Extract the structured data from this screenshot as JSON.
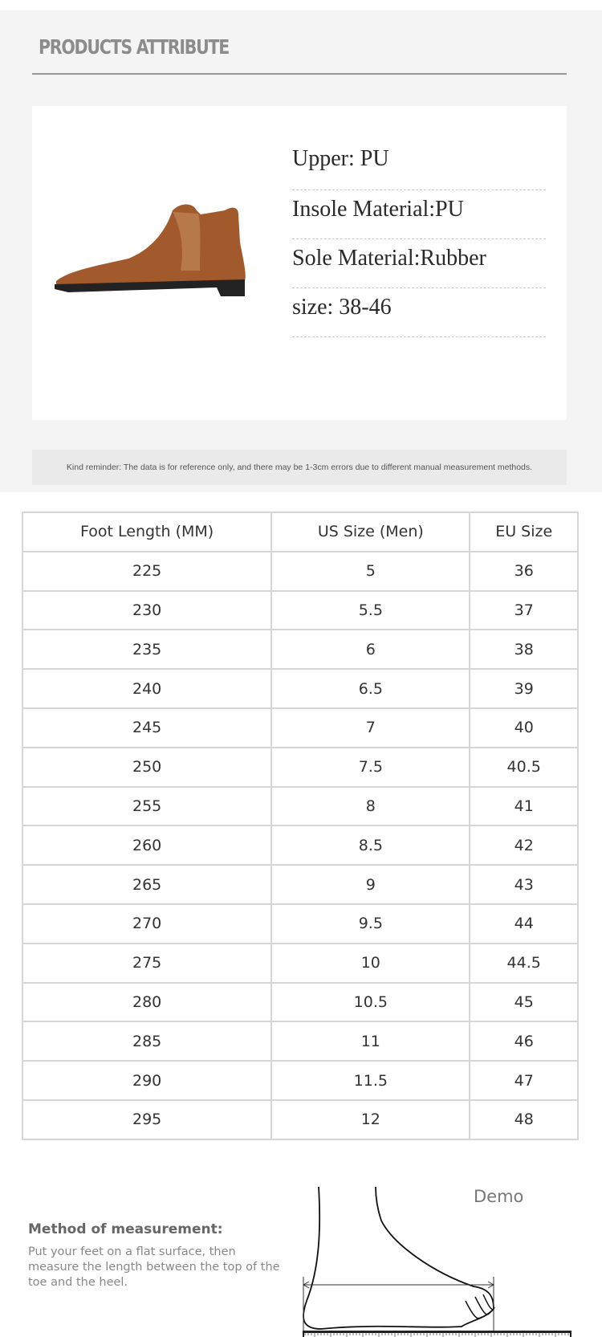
{
  "header": {
    "title": "PRODUCTS ATTRIBUTE"
  },
  "attributes": [
    "Upper: PU",
    "Insole Material:PU",
    "Sole Material:Rubber",
    "size: 38-46"
  ],
  "reminder": "Kind reminder: The data is for reference only, and there may be 1-3cm errors due to different manual measurement methods.",
  "size_table": {
    "headers": [
      "Foot Length (MM)",
      "US Size (Men)",
      "EU Size"
    ],
    "rows": [
      [
        "225",
        "5",
        "36"
      ],
      [
        "230",
        "5.5",
        "37"
      ],
      [
        "235",
        "6",
        "38"
      ],
      [
        "240",
        "6.5",
        "39"
      ],
      [
        "245",
        "7",
        "40"
      ],
      [
        "250",
        "7.5",
        "40.5"
      ],
      [
        "255",
        "8",
        "41"
      ],
      [
        "260",
        "8.5",
        "42"
      ],
      [
        "265",
        "9",
        "43"
      ],
      [
        "270",
        "9.5",
        "44"
      ],
      [
        "275",
        "10",
        "44.5"
      ],
      [
        "280",
        "10.5",
        "45"
      ],
      [
        "285",
        "11",
        "46"
      ],
      [
        "290",
        "11.5",
        "47"
      ],
      [
        "295",
        "12",
        "48"
      ]
    ]
  },
  "measurement": {
    "heading": "Method of measurement:",
    "text": "Put your feet on a flat surface,  then measure the length between the top of the toe and the heel.",
    "demo_label": "Demo"
  },
  "colors": {
    "background": "#f4f4f4",
    "shoe": "#a0582c"
  }
}
